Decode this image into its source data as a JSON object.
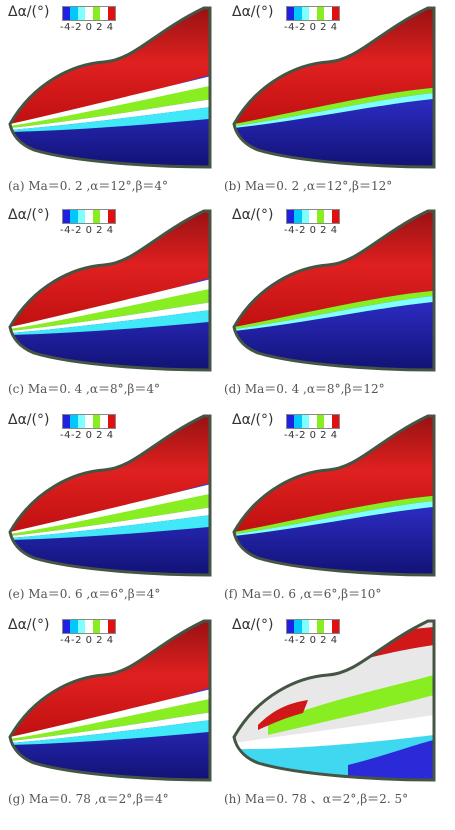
{
  "legend": {
    "title": "Δα/(°)",
    "ticks": "-4-2 0 2 4",
    "colors": [
      "#2020e0",
      "#00c8ff",
      "#80ffff",
      "#ffffff",
      "#88ee22",
      "#ffffff",
      "#e01010"
    ]
  },
  "panels": [
    {
      "id": "a",
      "caption": "(a) Ma＝0. 2 ,α＝12°,β＝4°",
      "variant": "stripes"
    },
    {
      "id": "b",
      "caption": "(b) Ma＝0. 2 ,α＝12°,β＝12°",
      "variant": "smooth"
    },
    {
      "id": "c",
      "caption": "(c) Ma＝0. 4 ,α＝8°,β＝4°",
      "variant": "stripes"
    },
    {
      "id": "d",
      "caption": "(d) Ma＝0. 4 ,α＝8°,β＝12°",
      "variant": "smooth"
    },
    {
      "id": "e",
      "caption": "(e) Ma＝0. 6 ,α＝6°,β＝4°",
      "variant": "stripes"
    },
    {
      "id": "f",
      "caption": "(f) Ma＝0. 6 ,α＝6°,β＝10°",
      "variant": "smooth"
    },
    {
      "id": "g",
      "caption": "(g) Ma＝0. 78 ,α＝2°,β＝4°",
      "variant": "stripes"
    },
    {
      "id": "h",
      "caption": "(h) Ma＝0. 78 、α＝2°,β＝2. 5°",
      "variant": "grey"
    }
  ]
}
